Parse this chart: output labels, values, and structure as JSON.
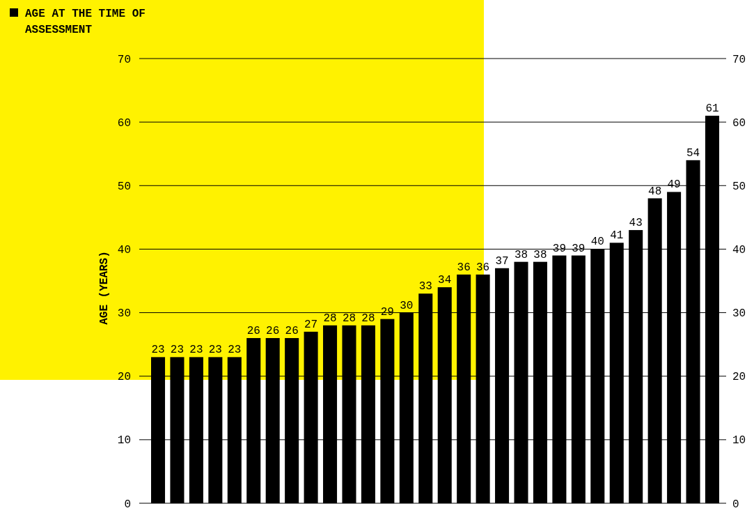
{
  "chart_data": {
    "type": "bar",
    "ylabel": "AGE (YEARS)",
    "categories": [
      null,
      null,
      null,
      null,
      null,
      null,
      null,
      null,
      null,
      null,
      null,
      null,
      null,
      null,
      null,
      null,
      null,
      null,
      null,
      null,
      null,
      null,
      null,
      null,
      null,
      null,
      null,
      null,
      null,
      null
    ],
    "series": [
      {
        "name": "AGE AT THE TIME OF ASSESSMENT",
        "color": "#000000",
        "values": [
          23,
          23,
          23,
          23,
          23,
          26,
          26,
          26,
          27,
          28,
          28,
          28,
          29,
          30,
          33,
          34,
          36,
          36,
          37,
          38,
          38,
          39,
          39,
          40,
          41,
          43,
          48,
          49,
          54,
          61
        ]
      }
    ],
    "ylim": [
      0,
      70
    ],
    "yticks": [
      0,
      10,
      20,
      30,
      40,
      50,
      60,
      70
    ],
    "y2lim": [
      0,
      70
    ],
    "y2ticks": [
      0,
      10,
      20,
      30,
      40,
      50,
      60,
      70
    ],
    "grid": "y",
    "legend": "top left",
    "data_labels": true
  }
}
